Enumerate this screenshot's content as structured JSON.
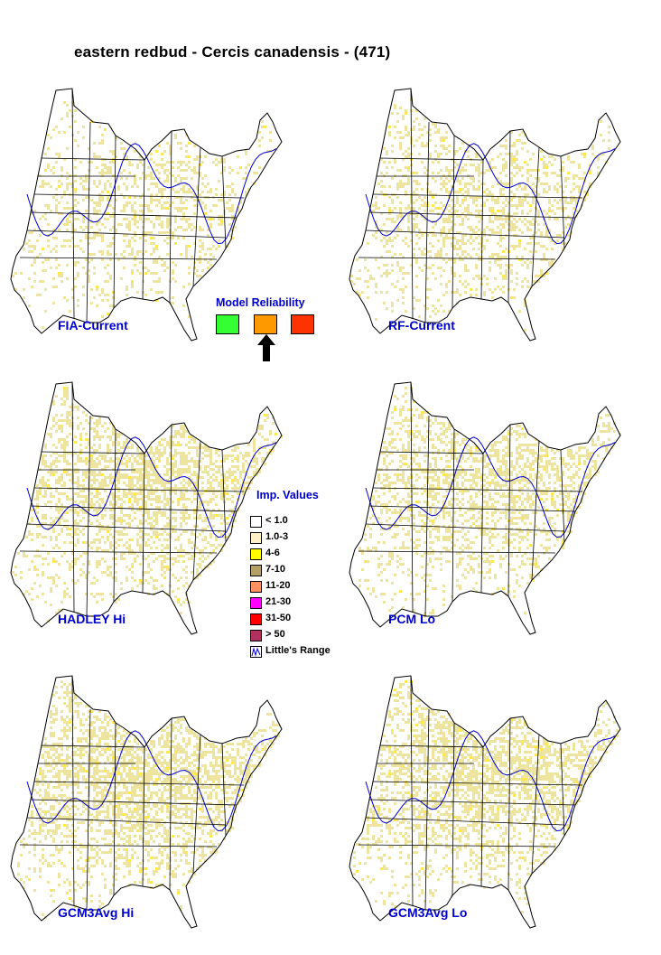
{
  "title": "eastern redbud - Cercis canadensis - (471)",
  "maps": [
    {
      "label": "FIA-Current",
      "density": 0.38,
      "seed": 11
    },
    {
      "label": "RF-Current",
      "density": 0.45,
      "seed": 23
    },
    {
      "label": "HADLEY Hi",
      "density": 0.55,
      "seed": 37
    },
    {
      "label": "PCM Lo",
      "density": 0.5,
      "seed": 41
    },
    {
      "label": "GCM3Avg Hi",
      "density": 0.62,
      "seed": 53
    },
    {
      "label": "GCM3Avg Lo",
      "density": 0.58,
      "seed": 67
    }
  ],
  "model_reliability": {
    "title": "Model Reliability",
    "levels": [
      {
        "name": "high",
        "color": "#33ff33"
      },
      {
        "name": "medium",
        "color": "#ff9900"
      },
      {
        "name": "low",
        "color": "#ff3300"
      }
    ],
    "selected_index": 1
  },
  "legend": {
    "title": "Imp. Values",
    "items": [
      {
        "label": "< 1.0",
        "color": "#ffffff"
      },
      {
        "label": "1.0-3",
        "color": "#fff0c8"
      },
      {
        "label": "4-6",
        "color": "#ffff00"
      },
      {
        "label": "7-10",
        "color": "#b4a064"
      },
      {
        "label": "11-20",
        "color": "#ff9060"
      },
      {
        "label": "21-30",
        "color": "#ff00ff"
      },
      {
        "label": "31-50",
        "color": "#ff0000"
      },
      {
        "label": "> 50",
        "color": "#b03060"
      }
    ],
    "range_label": "Little's Range",
    "range_color": "#0000cc"
  },
  "colors": {
    "presence": "#ede4a0",
    "hotspot": "#ffe84a",
    "state_lines": "#000000",
    "range_line": "#0000cc"
  }
}
